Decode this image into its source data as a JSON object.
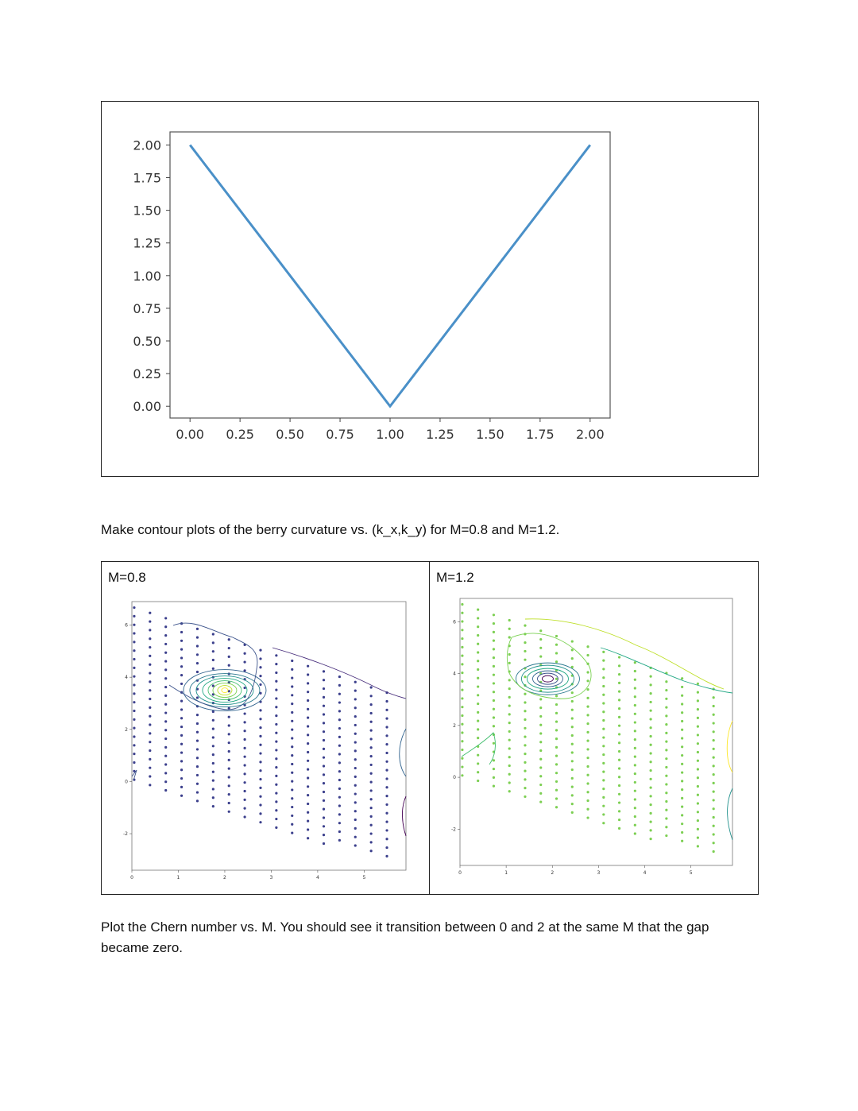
{
  "questions": {
    "q1": "Make contour plots of the berry curvature vs. (k_x,k_y) for M=0.8 and M=1.2.",
    "q2": "Plot the Chern number vs. M. You should see it transition between 0 and 2 at the same M that the gap became zero."
  },
  "panels": {
    "left_label": "M=0.8",
    "right_label": "M=1.2"
  },
  "chart_data": [
    {
      "type": "line",
      "x": [
        0.0,
        1.0,
        2.0
      ],
      "series": [
        {
          "values": [
            2.0,
            0.0,
            2.0
          ],
          "color": "#4a90c8"
        }
      ],
      "xticks": [
        "0.00",
        "0.25",
        "0.50",
        "0.75",
        "1.00",
        "1.25",
        "1.50",
        "1.75",
        "2.00"
      ],
      "yticks": [
        "0.00",
        "0.25",
        "0.50",
        "0.75",
        "1.00",
        "1.25",
        "1.50",
        "1.75",
        "2.00"
      ],
      "xlim": [
        -0.1,
        2.1
      ],
      "ylim": [
        -0.09,
        2.1
      ]
    },
    {
      "type": "scatter",
      "title": "",
      "xticks": [
        "0",
        "1",
        "2",
        "3",
        "4",
        "5"
      ],
      "yticks": [
        "-2",
        "0",
        "2",
        "4",
        "6"
      ],
      "xlim": [
        0,
        5.9
      ],
      "ylim": [
        -3.4,
        6.9
      ],
      "point_color": "#3b3f8c"
    },
    {
      "type": "scatter",
      "title": "",
      "xticks": [
        "0",
        "1",
        "2",
        "3",
        "4",
        "5"
      ],
      "yticks": [
        "-2",
        "0",
        "2",
        "4",
        "6"
      ],
      "xlim": [
        0,
        5.9
      ],
      "ylim": [
        -3.4,
        6.9
      ],
      "point_color": "#7ccf52"
    }
  ]
}
